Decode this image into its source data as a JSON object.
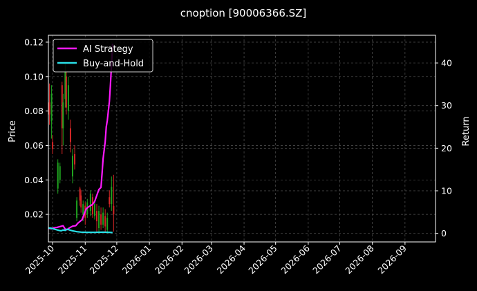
{
  "chart_data": {
    "type": "line",
    "title": "cnoption [90006366.SZ]",
    "ylabel_left": "Price",
    "ylabel_right": "Return",
    "background": "#000000",
    "grid": true,
    "legend_placement": "top-left",
    "x_axis": {
      "range": [
        "2025-09-27",
        "2026-09-30"
      ],
      "tick_labels": [
        "2025-10",
        "2025-11",
        "2025-12",
        "2026-01",
        "2026-02",
        "2026-03",
        "2026-04",
        "2026-05",
        "2026-06",
        "2026-07",
        "2026-08",
        "2026-09"
      ],
      "tick_dates": [
        "2025-10-01",
        "2025-11-01",
        "2025-12-01",
        "2026-01-01",
        "2026-02-01",
        "2026-03-01",
        "2026-04-01",
        "2026-05-01",
        "2026-06-01",
        "2026-07-01",
        "2026-08-01",
        "2026-09-01"
      ]
    },
    "y_left": {
      "range": [
        0.004,
        0.124
      ],
      "ticks": [
        0.02,
        0.04,
        0.06,
        0.08,
        0.1,
        0.12
      ],
      "tick_labels": [
        "0.02",
        "0.04",
        "0.06",
        "0.08",
        "0.10",
        "0.12"
      ]
    },
    "y_right": {
      "range": [
        -2,
        46.5
      ],
      "ticks": [
        0,
        10,
        20,
        30,
        40
      ],
      "tick_labels": [
        "0",
        "10",
        "20",
        "30",
        "40"
      ]
    },
    "series": [
      {
        "name": "AI Strategy",
        "axis": "right",
        "color": "#ff1aff",
        "points": [
          [
            "2025-09-27",
            1.2
          ],
          [
            "2025-09-30",
            1.1
          ],
          [
            "2025-10-02",
            1.3
          ],
          [
            "2025-10-05",
            1.4
          ],
          [
            "2025-10-08",
            1.6
          ],
          [
            "2025-10-11",
            1.8
          ],
          [
            "2025-10-13",
            1.0
          ],
          [
            "2025-10-15",
            0.9
          ],
          [
            "2025-10-17",
            1.3
          ],
          [
            "2025-10-20",
            1.7
          ],
          [
            "2025-10-23",
            1.8
          ],
          [
            "2025-10-25",
            2.4
          ],
          [
            "2025-10-27",
            2.8
          ],
          [
            "2025-10-29",
            3.2
          ],
          [
            "2025-10-31",
            4.5
          ],
          [
            "2025-11-02",
            5.8
          ],
          [
            "2025-11-04",
            6.2
          ],
          [
            "2025-11-06",
            6.5
          ],
          [
            "2025-11-08",
            6.8
          ],
          [
            "2025-11-10",
            7.5
          ],
          [
            "2025-11-12",
            8.9
          ],
          [
            "2025-11-14",
            10.3
          ],
          [
            "2025-11-16",
            10.8
          ],
          [
            "2025-11-17",
            14.0
          ],
          [
            "2025-11-18",
            17.5
          ],
          [
            "2025-11-19",
            19.5
          ],
          [
            "2025-11-20",
            21.5
          ],
          [
            "2025-11-21",
            25.0
          ],
          [
            "2025-11-22",
            26.5
          ],
          [
            "2025-11-24",
            31.0
          ],
          [
            "2025-11-25",
            35.0
          ],
          [
            "2025-11-26",
            39.5
          ],
          [
            "2025-11-27",
            44.5
          ]
        ]
      },
      {
        "name": "Buy-and-Hold",
        "axis": "right",
        "color": "#29e0e8",
        "points": [
          [
            "2025-09-27",
            1.3
          ],
          [
            "2025-09-30",
            1.2
          ],
          [
            "2025-10-04",
            0.9
          ],
          [
            "2025-10-07",
            0.7
          ],
          [
            "2025-10-09",
            0.6
          ],
          [
            "2025-10-11",
            0.8
          ],
          [
            "2025-10-13",
            0.7
          ],
          [
            "2025-10-15",
            1.0
          ],
          [
            "2025-10-17",
            0.8
          ],
          [
            "2025-10-20",
            0.6
          ],
          [
            "2025-10-24",
            0.4
          ],
          [
            "2025-10-28",
            0.3
          ],
          [
            "2025-11-02",
            0.25
          ],
          [
            "2025-11-10",
            0.25
          ],
          [
            "2025-11-18",
            0.3
          ],
          [
            "2025-11-24",
            0.25
          ],
          [
            "2025-11-27",
            0.2
          ]
        ]
      }
    ],
    "candles": {
      "axis": "left",
      "up_color": "#1fa31f",
      "down_color": "#d42626",
      "items": [
        {
          "date": "2025-09-28",
          "open": 0.085,
          "close": 0.078,
          "high": 0.096,
          "low": 0.072
        },
        {
          "date": "2025-09-30",
          "open": 0.074,
          "close": 0.09,
          "high": 0.095,
          "low": 0.064
        },
        {
          "date": "2025-10-01",
          "open": 0.062,
          "close": 0.058,
          "high": 0.066,
          "low": 0.055
        },
        {
          "date": "2025-10-06",
          "open": 0.035,
          "close": 0.05,
          "high": 0.052,
          "low": 0.032
        },
        {
          "date": "2025-10-08",
          "open": 0.04,
          "close": 0.048,
          "high": 0.05,
          "low": 0.038
        },
        {
          "date": "2025-10-10",
          "open": 0.095,
          "close": 0.07,
          "high": 0.097,
          "low": 0.055
        },
        {
          "date": "2025-10-11",
          "open": 0.07,
          "close": 0.085,
          "high": 0.09,
          "low": 0.06
        },
        {
          "date": "2025-10-13",
          "open": 0.087,
          "close": 0.103,
          "high": 0.108,
          "low": 0.082
        },
        {
          "date": "2025-10-14",
          "open": 0.1,
          "close": 0.082,
          "high": 0.103,
          "low": 0.078
        },
        {
          "date": "2025-10-16",
          "open": 0.08,
          "close": 0.095,
          "high": 0.1,
          "low": 0.075
        },
        {
          "date": "2025-10-18",
          "open": 0.07,
          "close": 0.062,
          "high": 0.075,
          "low": 0.056
        },
        {
          "date": "2025-10-20",
          "open": 0.042,
          "close": 0.054,
          "high": 0.058,
          "low": 0.038
        },
        {
          "date": "2025-10-22",
          "open": 0.055,
          "close": 0.049,
          "high": 0.06,
          "low": 0.046
        },
        {
          "date": "2025-10-24",
          "open": 0.018,
          "close": 0.028,
          "high": 0.03,
          "low": 0.016
        },
        {
          "date": "2025-10-27",
          "open": 0.035,
          "close": 0.028,
          "high": 0.036,
          "low": 0.025
        },
        {
          "date": "2025-10-28",
          "open": 0.031,
          "close": 0.024,
          "high": 0.034,
          "low": 0.021
        },
        {
          "date": "2025-10-30",
          "open": 0.02,
          "close": 0.026,
          "high": 0.028,
          "low": 0.016
        },
        {
          "date": "2025-11-01",
          "open": 0.025,
          "close": 0.018,
          "high": 0.027,
          "low": 0.014
        },
        {
          "date": "2025-11-03",
          "open": 0.02,
          "close": 0.027,
          "high": 0.029,
          "low": 0.018
        },
        {
          "date": "2025-11-06",
          "open": 0.022,
          "close": 0.032,
          "high": 0.034,
          "low": 0.019
        },
        {
          "date": "2025-11-08",
          "open": 0.03,
          "close": 0.02,
          "high": 0.032,
          "low": 0.018
        },
        {
          "date": "2025-11-10",
          "open": 0.019,
          "close": 0.026,
          "high": 0.028,
          "low": 0.017
        },
        {
          "date": "2025-11-12",
          "open": 0.022,
          "close": 0.016,
          "high": 0.026,
          "low": 0.01
        },
        {
          "date": "2025-11-14",
          "open": 0.012,
          "close": 0.022,
          "high": 0.025,
          "low": 0.009
        },
        {
          "date": "2025-11-16",
          "open": 0.02,
          "close": 0.014,
          "high": 0.024,
          "low": 0.011
        },
        {
          "date": "2025-11-18",
          "open": 0.014,
          "close": 0.021,
          "high": 0.024,
          "low": 0.012
        },
        {
          "date": "2025-11-20",
          "open": 0.019,
          "close": 0.013,
          "high": 0.023,
          "low": 0.01
        },
        {
          "date": "2025-11-22",
          "open": 0.011,
          "close": 0.018,
          "high": 0.021,
          "low": 0.009
        },
        {
          "date": "2025-11-24",
          "open": 0.03,
          "close": 0.026,
          "high": 0.034,
          "low": 0.024
        },
        {
          "date": "2025-11-26",
          "open": 0.026,
          "close": 0.036,
          "high": 0.042,
          "low": 0.022
        },
        {
          "date": "2025-11-28",
          "open": 0.025,
          "close": 0.02,
          "high": 0.043,
          "low": 0.01
        }
      ]
    }
  }
}
